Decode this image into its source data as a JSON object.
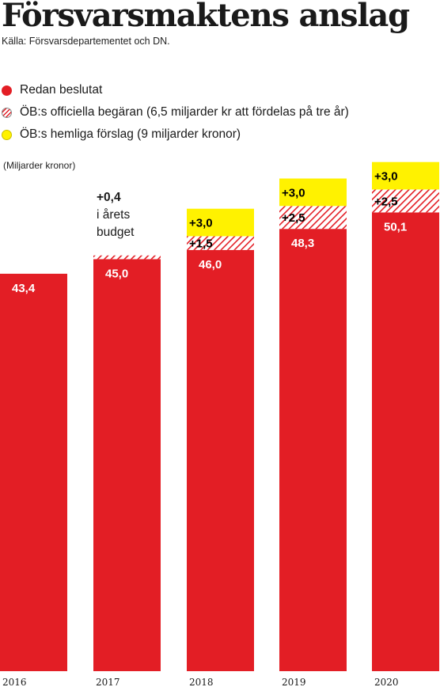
{
  "title": "Försvarsmaktens anslag",
  "source": "Källa: Försvarsdepartementet och DN.",
  "legend": {
    "items": [
      {
        "label": "Redan beslutat",
        "icon": "red-circle"
      },
      {
        "label": "ÖB:s officiella begäran (6,5 miljarder kr att fördelas på tre år)",
        "icon": "hatched-circle"
      },
      {
        "label": "ÖB:s hemliga förslag (9 miljarder kronor)",
        "icon": "yellow-circle"
      }
    ]
  },
  "unit_label": "(Miljarder kronor)",
  "colors": {
    "decided": "#e31e25",
    "official": "#e31e25",
    "secret": "#fff200"
  },
  "annotation_2017": [
    "+0,4",
    "i årets",
    "budget"
  ],
  "chart_data": {
    "type": "bar",
    "stacked": true,
    "categories": [
      "2016",
      "2017",
      "2018",
      "2019",
      "2020"
    ],
    "series": [
      {
        "name": "Redan beslutat",
        "values": [
          43.4,
          45.0,
          46.0,
          48.3,
          50.1
        ],
        "labels": [
          "43,4",
          "45,0",
          "46,0",
          "48,3",
          "50,1"
        ]
      },
      {
        "name": "ÖB:s officiella begäran",
        "values": [
          0,
          0.4,
          1.5,
          2.5,
          2.5
        ],
        "labels": [
          "",
          "",
          "+1,5",
          "+2,5",
          "+2,5"
        ]
      },
      {
        "name": "ÖB:s hemliga förslag",
        "values": [
          0,
          0,
          3.0,
          3.0,
          3.0
        ],
        "labels": [
          "",
          "",
          "+3,0",
          "+3,0",
          "+3,0"
        ]
      }
    ],
    "ylabel": "(Miljarder kronor)",
    "grid": false,
    "legend_position": "top"
  }
}
